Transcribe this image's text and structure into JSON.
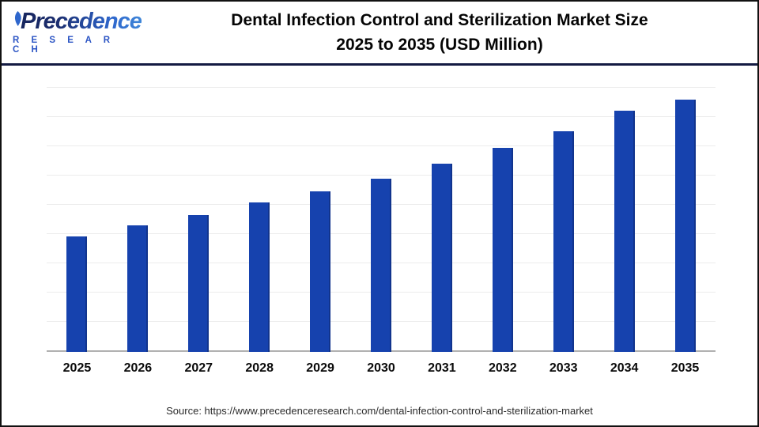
{
  "header": {
    "logo": {
      "name": "Precedence",
      "subtitle": "R E S E A R C H"
    },
    "title_line1": "Dental Infection Control and Sterilization Market Size",
    "title_line2": "2025 to 2035 (USD Million)"
  },
  "chart_data": {
    "type": "bar",
    "title": "Dental Infection Control and Sterilization Market Size 2025 to 2035 (USD Million)",
    "categories": [
      "2025",
      "2026",
      "2027",
      "2028",
      "2029",
      "2030",
      "2031",
      "2032",
      "2033",
      "2034",
      "2035"
    ],
    "values": [
      43.7,
      47.9,
      51.6,
      56.3,
      60.6,
      65.4,
      71.0,
      76.9,
      83.3,
      91.0,
      95.1
    ],
    "value_scale": "percent of plot height; y-axis has no visible tick labels",
    "xlabel": "",
    "ylabel": "",
    "ylim": [
      0,
      100
    ],
    "grid": "horizontal",
    "legend": "none",
    "bar_color": "#1642ae"
  },
  "footer": {
    "source": "Source: https://www.precedenceresearch.com/dental-infection-control-and-sterilization-market"
  },
  "colors": {
    "bar": "#1642ae",
    "header_divider": "#131a42",
    "gridline": "#ececec",
    "axis_line": "#b0b0b0",
    "logo_navy": "#1b2d6e",
    "logo_blue": "#2e66cc",
    "title_text": "#050505",
    "source_text": "#2b2b2b"
  }
}
